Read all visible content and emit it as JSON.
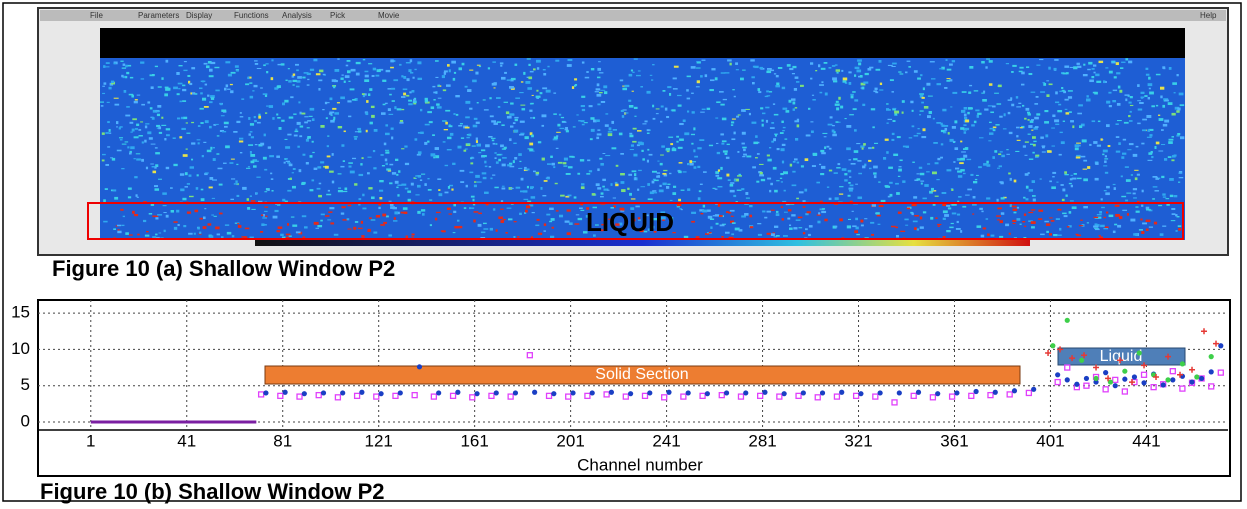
{
  "figure_a": {
    "menu": [
      "File",
      "Parameters",
      "Display",
      "Functions",
      "Analysis",
      "Pick",
      "Movie",
      "Help"
    ],
    "annotation": "LIQUID",
    "caption": "Figure 10 (a) Shallow Window P2"
  },
  "chart_data": {
    "type": "scatter",
    "xlabel": "Channel number",
    "caption": "Figure 10 (b) Shallow Window P2",
    "annotations": [
      "Solid Section",
      "Liquid"
    ],
    "xlim": [
      -21,
      475
    ],
    "ylim": [
      -1.1,
      16.8
    ],
    "xticks": [
      1,
      41,
      81,
      121,
      161,
      201,
      241,
      281,
      321,
      361,
      401,
      441
    ],
    "yticks": [
      0,
      5,
      10,
      15
    ],
    "grid": true,
    "series": [
      {
        "color": "#7b1fa2",
        "marker": "line",
        "x": [
          1,
          70
        ],
        "values": [
          0,
          0
        ]
      },
      {
        "color": "#e040fb",
        "marker": "square",
        "x": [
          72,
          80,
          88,
          96,
          104,
          112,
          120,
          128,
          136,
          144,
          152,
          160,
          168,
          176,
          184,
          192,
          200,
          208,
          216,
          224,
          232,
          240,
          248,
          256,
          264,
          272,
          280,
          288,
          296,
          304,
          312,
          320,
          328,
          336,
          344,
          352,
          360,
          368,
          376,
          384,
          392,
          404,
          408,
          412,
          416,
          420,
          424,
          428,
          432,
          436,
          440,
          444,
          448,
          452,
          456,
          460,
          464,
          468,
          472
        ],
        "values": [
          3.8,
          3.6,
          3.5,
          3.7,
          3.4,
          3.6,
          3.5,
          3.6,
          3.7,
          3.5,
          3.6,
          3.4,
          3.6,
          3.5,
          9.2,
          3.6,
          3.5,
          3.6,
          3.8,
          3.5,
          3.6,
          3.4,
          3.5,
          3.6,
          3.7,
          3.5,
          3.6,
          3.5,
          3.6,
          3.4,
          3.5,
          3.6,
          3.5,
          2.7,
          3.6,
          3.4,
          3.5,
          3.6,
          3.7,
          3.8,
          4.0,
          5.5,
          7.5,
          4.8,
          5.0,
          6.2,
          4.5,
          5.8,
          4.2,
          5.5,
          6.5,
          4.8,
          5.2,
          7.0,
          4.6,
          5.4,
          6.0,
          4.9,
          6.8
        ]
      },
      {
        "color": "#1a3fc4",
        "marker": "circle",
        "x": [
          74,
          82,
          90,
          98,
          106,
          114,
          122,
          130,
          138,
          146,
          154,
          162,
          170,
          178,
          186,
          194,
          202,
          210,
          218,
          226,
          234,
          242,
          250,
          258,
          266,
          274,
          282,
          290,
          298,
          306,
          314,
          322,
          330,
          338,
          346,
          354,
          362,
          370,
          378,
          386,
          394,
          404,
          408,
          412,
          416,
          420,
          424,
          428,
          432,
          436,
          440,
          444,
          448,
          452,
          456,
          460,
          464,
          468,
          472
        ],
        "values": [
          4.0,
          4.1,
          3.9,
          4.0,
          4.0,
          4.1,
          3.9,
          4.0,
          7.6,
          4.0,
          4.1,
          3.9,
          4.0,
          4.0,
          4.1,
          3.9,
          4.0,
          4.0,
          4.1,
          3.9,
          4.0,
          4.1,
          4.0,
          3.9,
          4.0,
          4.0,
          4.1,
          3.9,
          4.0,
          4.0,
          4.1,
          3.9,
          4.0,
          4.0,
          4.1,
          3.9,
          4.0,
          4.2,
          4.1,
          4.3,
          4.5,
          6.5,
          5.8,
          5.2,
          6.0,
          5.5,
          6.8,
          5.0,
          5.9,
          6.2,
          5.4,
          6.6,
          5.1,
          5.8,
          6.3,
          5.5,
          6.0,
          6.9,
          10.5
        ]
      },
      {
        "color": "#3ecf4a",
        "marker": "circle",
        "x": [
          402,
          408,
          414,
          420,
          426,
          432,
          438,
          444,
          450,
          456,
          462,
          468
        ],
        "values": [
          10.5,
          14,
          8.5,
          6.0,
          5.5,
          7.0,
          9.5,
          6.5,
          5.8,
          8.0,
          6.2,
          9.0
        ]
      },
      {
        "color": "#e53935",
        "marker": "cross",
        "x": [
          400,
          405,
          410,
          415,
          420,
          425,
          430,
          435,
          440,
          445,
          450,
          455,
          460,
          465,
          470
        ],
        "values": [
          9.5,
          10,
          8.8,
          9.2,
          7.5,
          6.0,
          8.5,
          5.5,
          7.8,
          6.2,
          9.0,
          6.5,
          7.2,
          12.5,
          10.8
        ]
      }
    ]
  }
}
